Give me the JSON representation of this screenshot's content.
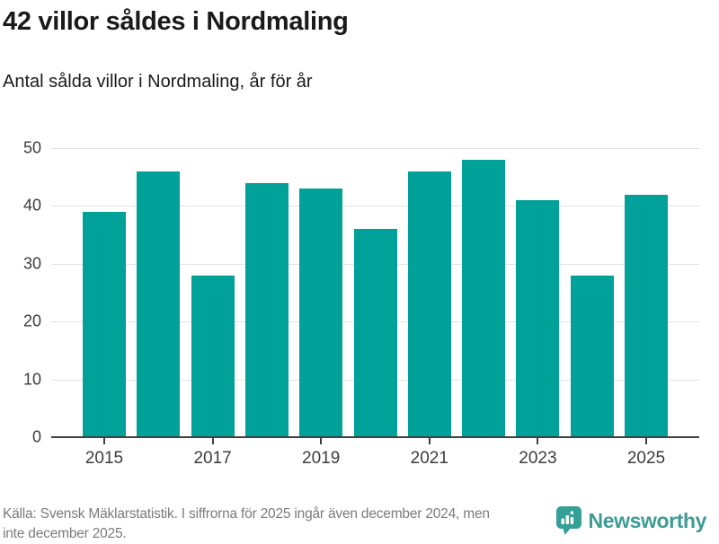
{
  "header": {
    "title": "42 villor såldes i Nordmaling",
    "subtitle": "Antal sålda villor i Nordmaling, år för år"
  },
  "chart_data": {
    "type": "bar",
    "categories": [
      "2015",
      "2016",
      "2017",
      "2018",
      "2019",
      "2020",
      "2021",
      "2022",
      "2023",
      "2024",
      "2025"
    ],
    "values": [
      39,
      46,
      28,
      44,
      43,
      36,
      46,
      48,
      41,
      28,
      42
    ],
    "title": "42 villor såldes i Nordmaling",
    "subtitle": "Antal sålda villor i Nordmaling, år för år",
    "xlabel": "",
    "ylabel": "",
    "ylim": [
      0,
      50
    ],
    "yticks": [
      0,
      10,
      20,
      30,
      40,
      50
    ],
    "xtick_labels": [
      "2015",
      "2017",
      "2019",
      "2021",
      "2023",
      "2025"
    ],
    "grid": "horizontal",
    "legend": "none",
    "bar_color": "#00a199"
  },
  "footer": {
    "source": "Källa: Svensk Mäklarstatistik. I siffrorna för 2025 ingår även december 2024, men\ninte december 2025.",
    "brand": "Newsworthy"
  },
  "colors": {
    "accent": "#00a199",
    "brand": "#3e9c94",
    "grid": "#e2e2e2",
    "axis": "#404040",
    "text": "#1a1a1a",
    "muted": "#7b7b7b"
  }
}
